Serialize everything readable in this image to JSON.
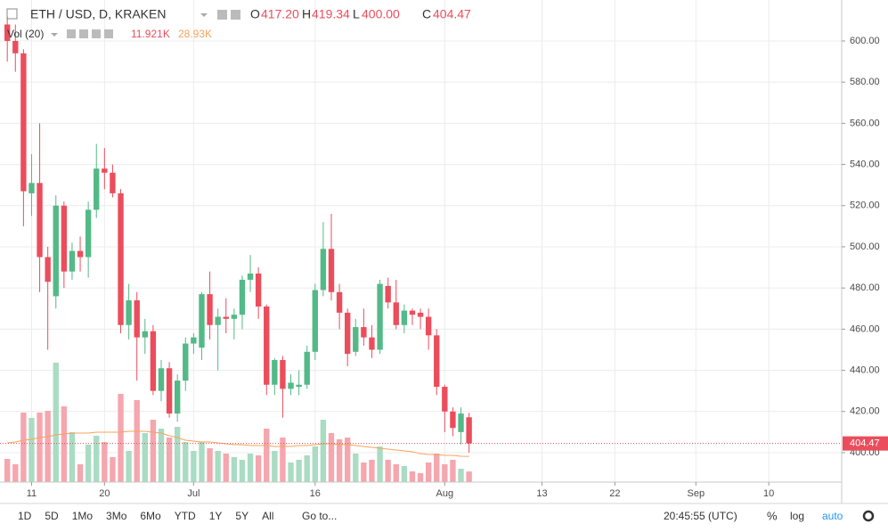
{
  "header": {
    "symbol": "ETH / USD, D, KRAKEN",
    "o_label": "O",
    "o_value": "417.20",
    "h_label": "H",
    "h_value": "419.34",
    "l_label": "L",
    "l_value": "400.00",
    "c_label": "C",
    "c_value": "404.47",
    "vol_title": "Vol (20)",
    "vol_value": "11.921K",
    "vol_ma": "28.93K"
  },
  "toolbar": {
    "ranges": [
      "1D",
      "5D",
      "1Mo",
      "3Mo",
      "6Mo",
      "YTD",
      "1Y",
      "5Y",
      "All"
    ],
    "goto": "Go to...",
    "time": "20:45:55 (UTC)",
    "percent": "%",
    "log": "log",
    "auto": "auto"
  },
  "chart_data": {
    "type": "candlestick",
    "up_color": "#53b987",
    "down_color": "#eb4d5c",
    "volume_up_color": "#a9dcc3",
    "volume_down_color": "#f5a6ae",
    "ma_color": "#f7a35c",
    "grid": true,
    "x": [
      0,
      1,
      2,
      3,
      4,
      5,
      6,
      7,
      8,
      9,
      10,
      11,
      12,
      13,
      14,
      15,
      16,
      17,
      18,
      19,
      20,
      21,
      22,
      23,
      24,
      25,
      26,
      27,
      28,
      29,
      30,
      31,
      32,
      33,
      34,
      35,
      36,
      37,
      38,
      39,
      40,
      41,
      42,
      43,
      44,
      45,
      46,
      47,
      48,
      49,
      50,
      51,
      52,
      53,
      54,
      55,
      56,
      57
    ],
    "open": [
      608,
      600,
      594,
      526,
      531,
      495,
      476,
      520,
      488,
      498,
      495,
      518,
      538,
      536,
      526,
      462,
      474,
      456,
      459,
      430,
      441,
      419,
      435,
      453,
      451,
      477,
      462,
      466,
      465,
      467,
      484,
      487,
      471,
      433,
      445,
      431,
      432,
      433,
      449,
      479,
      499,
      478,
      468,
      449,
      461,
      456,
      450,
      481,
      473,
      462,
      469,
      468,
      466,
      457,
      432,
      420,
      410,
      417.2
    ],
    "high": [
      612,
      608,
      596,
      545,
      560,
      500,
      525,
      522,
      502,
      505,
      522,
      550,
      548,
      540,
      528,
      482,
      478,
      465,
      462,
      445,
      444,
      438,
      456,
      458,
      478,
      488,
      470,
      475,
      470,
      486,
      496,
      490,
      472,
      446,
      447,
      438,
      440,
      452,
      482,
      512,
      516,
      482,
      470,
      465,
      470,
      462,
      484,
      485,
      484,
      472,
      470,
      470,
      470,
      460,
      433,
      422,
      422,
      419.34
    ],
    "low": [
      590,
      585,
      510,
      515,
      478,
      450,
      470,
      480,
      484,
      488,
      485,
      514,
      528,
      524,
      458,
      455,
      435,
      448,
      428,
      425,
      417,
      415,
      430,
      448,
      445,
      455,
      440,
      458,
      455,
      460,
      478,
      465,
      428,
      428,
      417,
      428,
      428,
      431,
      445,
      476,
      474,
      460,
      442,
      447,
      452,
      446,
      448,
      470,
      460,
      458,
      462,
      460,
      450,
      428,
      410,
      408,
      404,
      400
    ],
    "close": [
      600,
      594,
      527,
      531,
      495,
      483,
      520,
      488,
      498,
      495,
      518,
      538,
      536,
      526,
      462,
      474,
      456,
      459,
      430,
      441,
      419,
      435,
      453,
      456,
      477,
      462,
      466,
      465,
      467,
      484,
      487,
      471,
      433,
      445,
      431,
      434,
      433,
      449,
      479,
      499,
      478,
      468,
      448,
      461,
      456,
      450,
      482,
      473,
      462,
      469,
      467,
      466,
      457,
      432,
      420,
      412,
      419,
      404.47
    ],
    "volume": [
      26000,
      20000,
      78000,
      72000,
      78000,
      80000,
      134000,
      85000,
      56000,
      20000,
      42000,
      52000,
      45000,
      28000,
      99000,
      35000,
      92000,
      55000,
      70000,
      60000,
      50000,
      62000,
      45000,
      35000,
      45000,
      38000,
      35000,
      32000,
      28000,
      25000,
      32000,
      30000,
      60000,
      35000,
      50000,
      22000,
      25000,
      30000,
      40000,
      70000,
      55000,
      48000,
      50000,
      32000,
      22000,
      25000,
      40000,
      25000,
      20000,
      18000,
      12000,
      10000,
      22000,
      32000,
      20000,
      25000,
      15000,
      11921
    ],
    "volume_ma": [
      44000,
      45000,
      47000,
      48000,
      50000,
      51000,
      53000,
      54000,
      55000,
      55000,
      55000,
      56000,
      56000,
      56000,
      56000,
      57000,
      57000,
      57000,
      56000,
      55000,
      52000,
      50000,
      47000,
      46000,
      45000,
      45000,
      44000,
      43000,
      42000,
      42000,
      41000,
      41000,
      41000,
      40000,
      40000,
      40000,
      41000,
      41000,
      42000,
      43000,
      43000,
      42000,
      42000,
      41000,
      40000,
      39000,
      38000,
      37000,
      36000,
      35000,
      34000,
      32000,
      31000,
      31000,
      30000,
      30000,
      29000,
      28930
    ],
    "xlim": [
      -0.9,
      103
    ],
    "xticks": [
      {
        "value": 3,
        "label": "11"
      },
      {
        "value": 12,
        "label": "20"
      },
      {
        "value": 23,
        "label": "Jul"
      },
      {
        "value": 38,
        "label": "16"
      },
      {
        "value": 54,
        "label": "Aug"
      },
      {
        "value": 66,
        "label": "13"
      },
      {
        "value": 75,
        "label": "22"
      },
      {
        "value": 85,
        "label": "Sep"
      },
      {
        "value": 94,
        "label": "10"
      }
    ],
    "ylim": [
      385.7,
      619.9
    ],
    "yticks": [
      {
        "value": 400,
        "label": "400.00"
      },
      {
        "value": 420,
        "label": "420.00"
      },
      {
        "value": 440,
        "label": "440.00"
      },
      {
        "value": 460,
        "label": "460.00"
      },
      {
        "value": 480,
        "label": "480.00"
      },
      {
        "value": 500,
        "label": "500.00"
      },
      {
        "value": 520,
        "label": "520.00"
      },
      {
        "value": 540,
        "label": "540.00"
      },
      {
        "value": 560,
        "label": "560.00"
      },
      {
        "value": 580,
        "label": "580.00"
      },
      {
        "value": 600,
        "label": "600.00"
      }
    ]
  }
}
